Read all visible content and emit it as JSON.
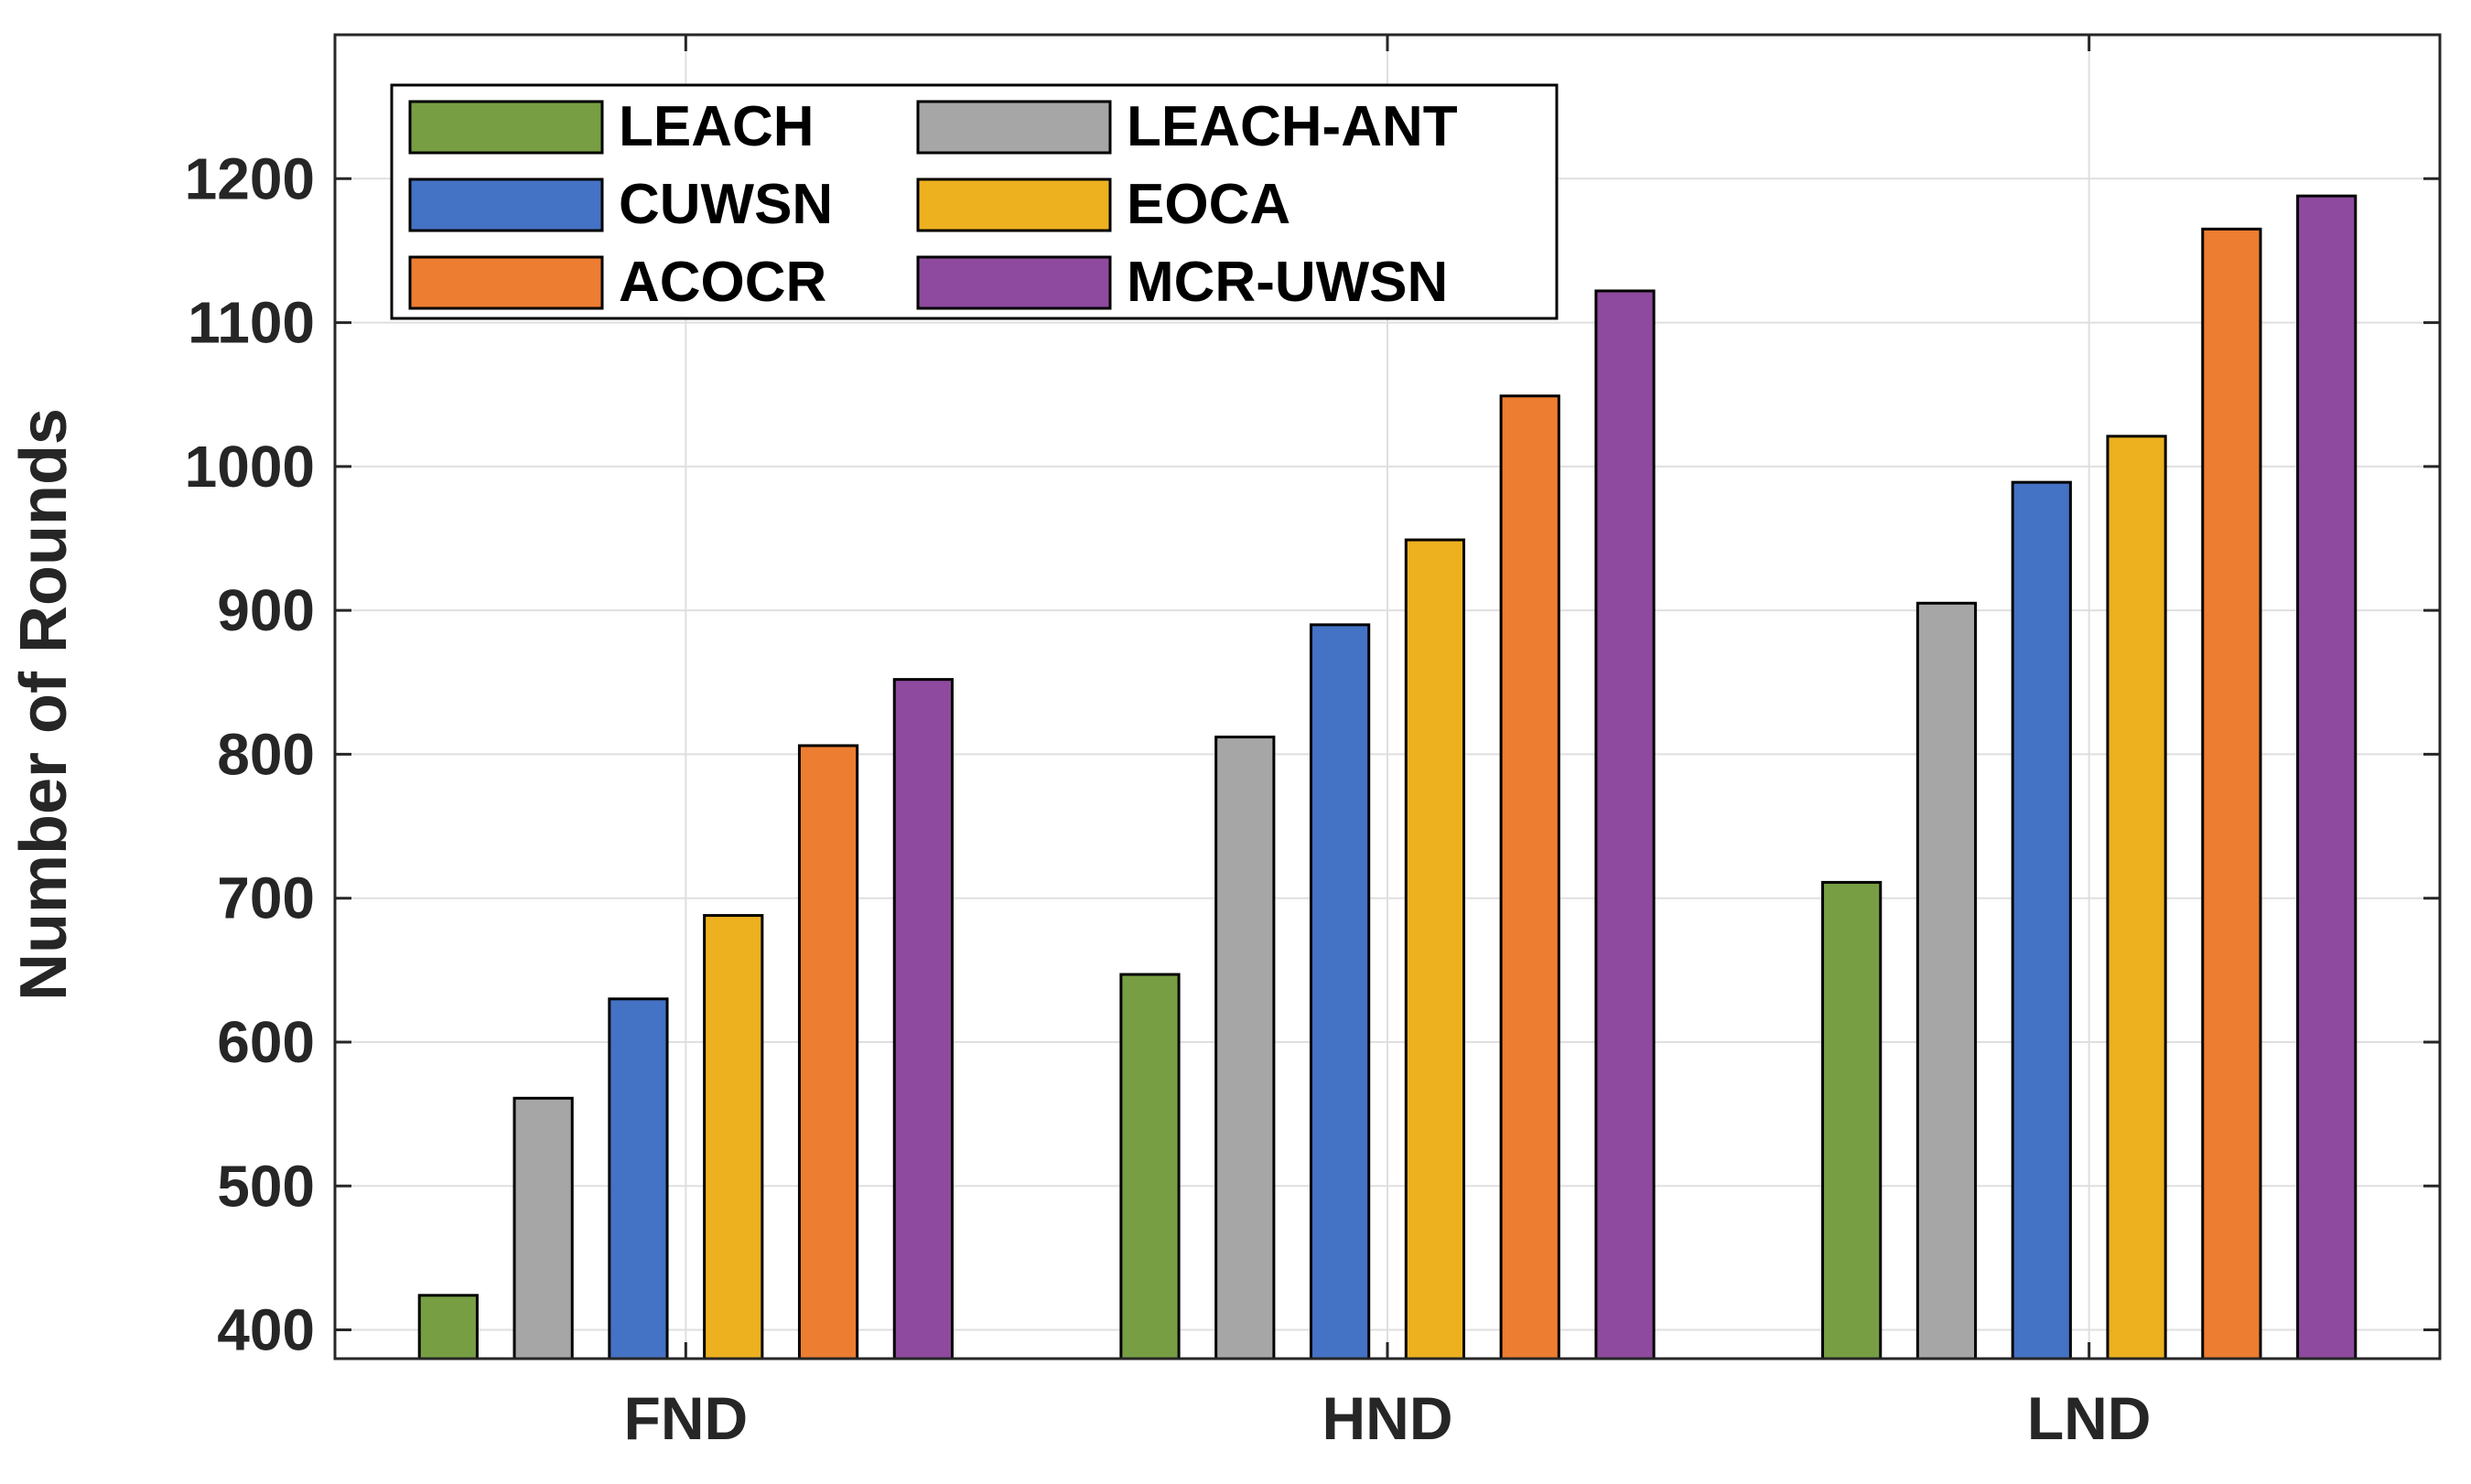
{
  "chart_data": {
    "type": "bar",
    "title": "",
    "xlabel": "",
    "ylabel": "Number of Rounds",
    "categories": [
      "FND",
      "HND",
      "LND"
    ],
    "ylim": [
      380,
      1300
    ],
    "yticks": [
      400,
      500,
      600,
      700,
      800,
      900,
      1000,
      1100,
      1200
    ],
    "grid": true,
    "legend_position": "top-left",
    "series": [
      {
        "name": "LEACH",
        "color": "#779E43",
        "values": [
          424,
          647,
          711
        ]
      },
      {
        "name": "LEACH-ANT",
        "color": "#A6A6A6",
        "values": [
          561,
          812,
          905
        ]
      },
      {
        "name": "CUWSN",
        "color": "#4472C4",
        "values": [
          630,
          890,
          989
        ]
      },
      {
        "name": "EOCA",
        "color": "#EDB120",
        "values": [
          688,
          949,
          1021
        ]
      },
      {
        "name": "ACOCR",
        "color": "#ED7D31",
        "values": [
          806,
          1049,
          1165
        ]
      },
      {
        "name": "MCR-UWSN",
        "color": "#8E4A9E",
        "values": [
          852,
          1122,
          1188
        ]
      }
    ]
  }
}
